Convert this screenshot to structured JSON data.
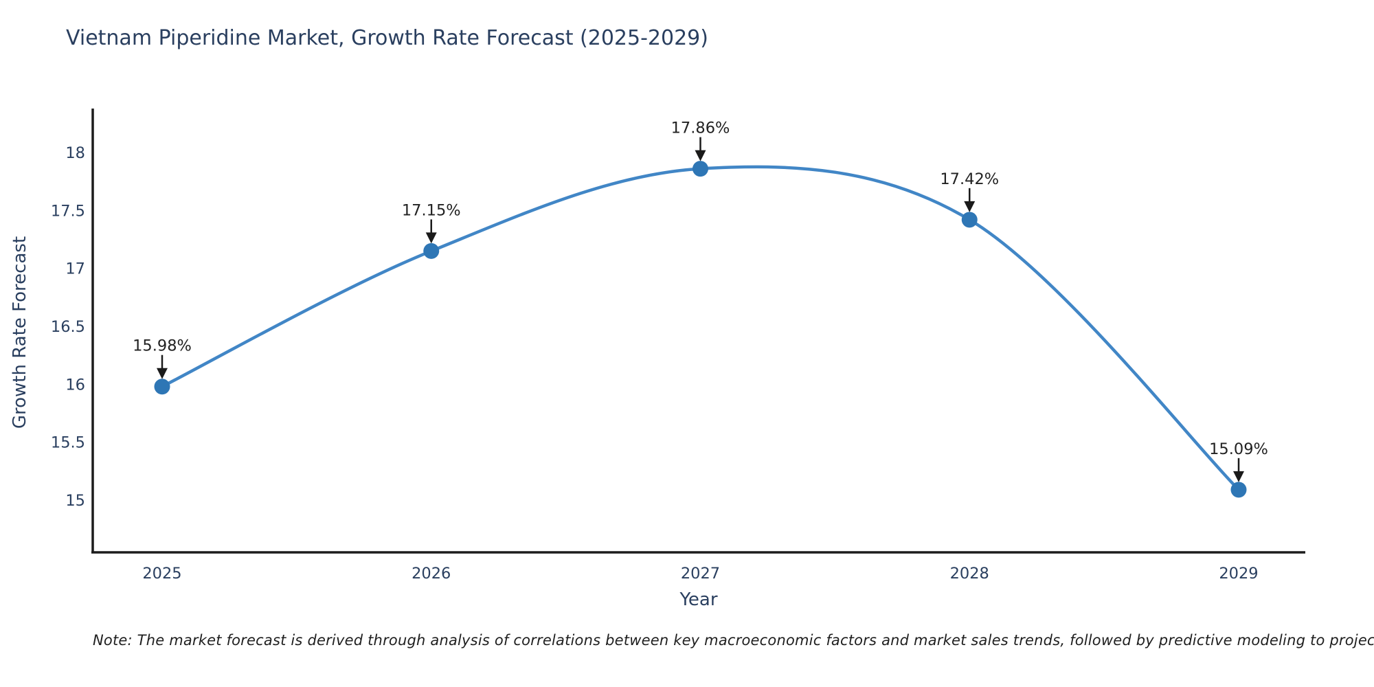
{
  "note": "Note: The market forecast is derived through analysis of correlations between key macroeconomic factors and market sales trends, followed by predictive modeling to project future sales.",
  "chart_data": {
    "type": "line",
    "title": "Vietnam Piperidine Market, Growth Rate Forecast (2025-2029)",
    "xlabel": "Year",
    "ylabel": "Growth Rate Forecast",
    "x": [
      2025,
      2026,
      2027,
      2028,
      2029
    ],
    "x_ticks": [
      "2025",
      "2026",
      "2027",
      "2028",
      "2029"
    ],
    "values": [
      15.98,
      17.15,
      17.86,
      17.42,
      15.09
    ],
    "point_labels": [
      "15.98%",
      "17.15%",
      "17.86%",
      "17.42%",
      "15.09%"
    ],
    "y_ticks": [
      18,
      17.5,
      17,
      16.5,
      16,
      15.5,
      15
    ],
    "ylim": [
      14.55,
      18.37
    ],
    "xlim": [
      2024.74,
      2029.25
    ],
    "line_shape": "spline",
    "grid": false,
    "legend": "none",
    "colors": {
      "line": "#4186c6",
      "marker": "#2e76b5",
      "axis": "#1c1c1c",
      "text": "#2a3f5f",
      "annotation_text": "#222222",
      "arrow": "#1a1a1a",
      "background": "#ffffff"
    }
  }
}
